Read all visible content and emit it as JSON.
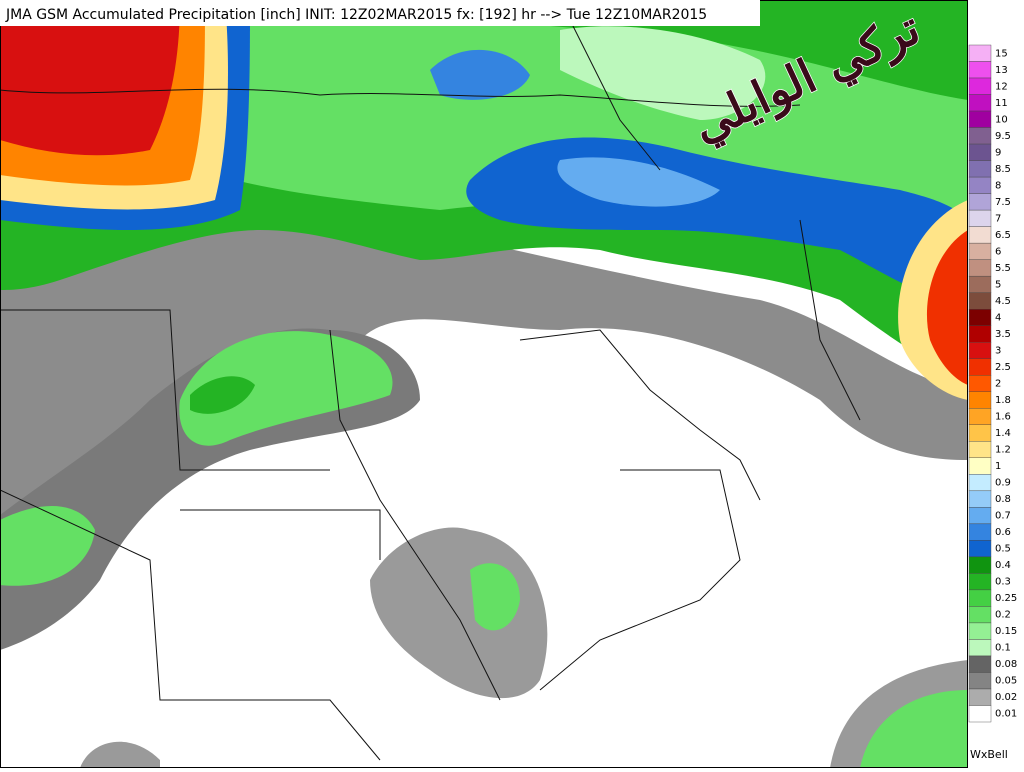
{
  "header": {
    "title": "JMA GSM Accumulated Precipitation [inch]  INIT: 12Z02MAR2015 fx: [192] hr --> Tue 12Z10MAR2015"
  },
  "watermark": "تركي الوايلي",
  "footer": "WxBell",
  "legend": {
    "items": [
      {
        "label": "15",
        "color": "#f5b0f5"
      },
      {
        "label": "13",
        "color": "#ee50ee"
      },
      {
        "label": "12",
        "color": "#dd28dd"
      },
      {
        "label": "11",
        "color": "#c010c0"
      },
      {
        "label": "10",
        "color": "#a000a0"
      },
      {
        "label": "9.5",
        "color": "#806090"
      },
      {
        "label": "9",
        "color": "#6c5490"
      },
      {
        "label": "8.5",
        "color": "#8070b0"
      },
      {
        "label": "8",
        "color": "#9484c4"
      },
      {
        "label": "7.5",
        "color": "#b0a4d8"
      },
      {
        "label": "7",
        "color": "#dcd4ec"
      },
      {
        "label": "6.5",
        "color": "#f2dcd2"
      },
      {
        "label": "6",
        "color": "#d8b0a0"
      },
      {
        "label": "5.5",
        "color": "#c09080"
      },
      {
        "label": "5",
        "color": "#9c6c5c"
      },
      {
        "label": "4.5",
        "color": "#7c4c3c"
      },
      {
        "label": "4",
        "color": "#7c0000"
      },
      {
        "label": "3.5",
        "color": "#b00000"
      },
      {
        "label": "3",
        "color": "#d81010"
      },
      {
        "label": "2.5",
        "color": "#f03000"
      },
      {
        "label": "2",
        "color": "#ff5800"
      },
      {
        "label": "1.8",
        "color": "#ff8400"
      },
      {
        "label": "1.6",
        "color": "#ffa424"
      },
      {
        "label": "1.4",
        "color": "#ffc448"
      },
      {
        "label": "1.2",
        "color": "#ffe488"
      },
      {
        "label": "1",
        "color": "#ffffc4"
      },
      {
        "label": "0.9",
        "color": "#c4ecff"
      },
      {
        "label": "0.8",
        "color": "#94ccf8"
      },
      {
        "label": "0.7",
        "color": "#64acf0"
      },
      {
        "label": "0.6",
        "color": "#3484e0"
      },
      {
        "label": "0.5",
        "color": "#1064d0"
      },
      {
        "label": "0.4",
        "color": "#109410"
      },
      {
        "label": "0.3",
        "color": "#24b424"
      },
      {
        "label": "0.25",
        "color": "#44d044"
      },
      {
        "label": "0.2",
        "color": "#64e064"
      },
      {
        "label": "0.15",
        "color": "#94f094"
      },
      {
        "label": "0.1",
        "color": "#bcf8bc"
      },
      {
        "label": "0.08",
        "color": "#646464"
      },
      {
        "label": "0.05",
        "color": "#848484"
      },
      {
        "label": "0.02",
        "color": "#acacac"
      },
      {
        "label": "0.01",
        "color": "#ffffff"
      }
    ]
  }
}
